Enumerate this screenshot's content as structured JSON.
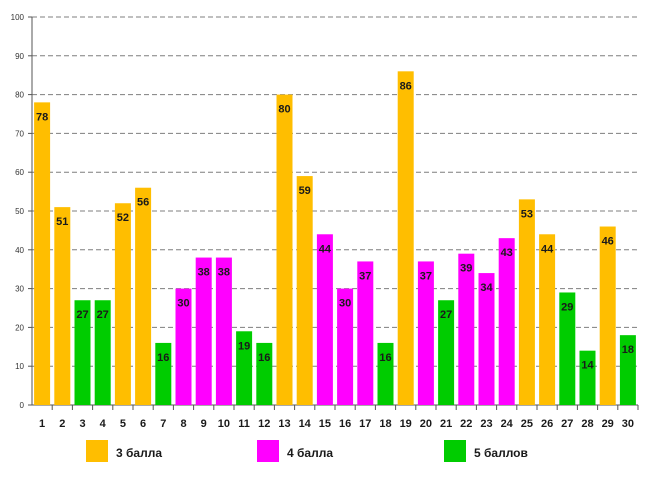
{
  "chart_data": {
    "type": "bar",
    "title": "",
    "xlabel": "",
    "ylabel": "",
    "ylim": [
      0,
      100
    ],
    "ytick_step": 10,
    "grid": true,
    "legend_position": "bottom",
    "categories": [
      "1",
      "2",
      "3",
      "4",
      "5",
      "6",
      "7",
      "8",
      "9",
      "10",
      "11",
      "12",
      "13",
      "14",
      "15",
      "16",
      "17",
      "18",
      "19",
      "20",
      "21",
      "22",
      "23",
      "24",
      "25",
      "26",
      "27",
      "28",
      "29",
      "30"
    ],
    "values": [
      78,
      51,
      27,
      27,
      52,
      56,
      16,
      30,
      38,
      38,
      19,
      16,
      80,
      59,
      44,
      30,
      37,
      16,
      86,
      37,
      27,
      39,
      34,
      43,
      53,
      44,
      29,
      14,
      46,
      18
    ],
    "groups": [
      "g3",
      "g3",
      "g5",
      "g5",
      "g3",
      "g3",
      "g5",
      "g4",
      "g4",
      "g4",
      "g5",
      "g5",
      "g3",
      "g3",
      "g4",
      "g4",
      "g4",
      "g5",
      "g3",
      "g4",
      "g5",
      "g4",
      "g4",
      "g4",
      "g3",
      "g3",
      "g5",
      "g5",
      "g3",
      "g5"
    ],
    "legend": [
      {
        "key": "g3",
        "label": "3 балла",
        "color": "#FFBE00"
      },
      {
        "key": "g4",
        "label": "4 балла",
        "color": "#FF00FF"
      },
      {
        "key": "g5",
        "label": "5 баллов",
        "color": "#00CC00"
      }
    ]
  }
}
